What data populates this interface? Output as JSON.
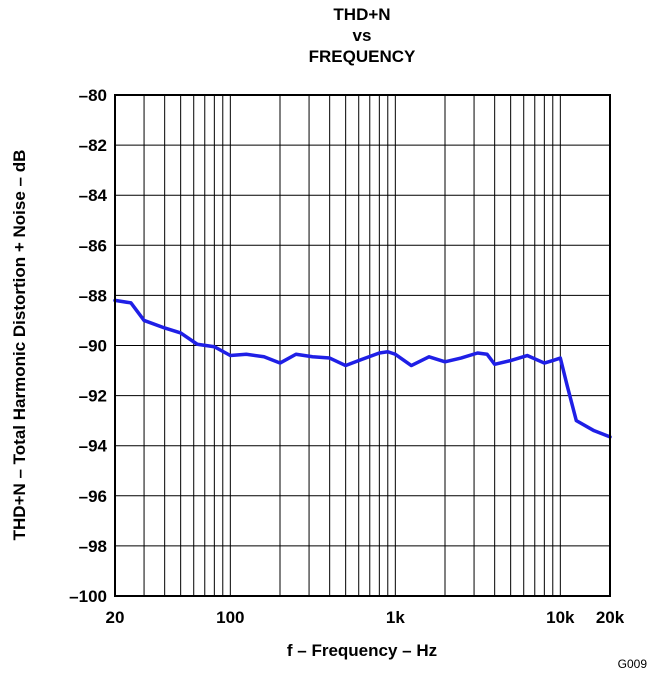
{
  "chart_data": {
    "type": "line",
    "title_lines": [
      "THD+N",
      "vs",
      "FREQUENCY"
    ],
    "xlabel": "f – Frequency – Hz",
    "ylabel": "THD+N – Total Harmonic Distortion + Noise – dB",
    "figure_code": "G009",
    "x_scale": "log",
    "xlim": [
      20,
      20000
    ],
    "ylim": [
      -100,
      -80
    ],
    "grid": true,
    "legend": "none",
    "x_ticks": [
      {
        "value": 20,
        "label": "20"
      },
      {
        "value": 100,
        "label": "100"
      },
      {
        "value": 1000,
        "label": "1k"
      },
      {
        "value": 10000,
        "label": "10k"
      },
      {
        "value": 20000,
        "label": "20k"
      }
    ],
    "y_ticks": [
      {
        "value": -80,
        "label": "–80"
      },
      {
        "value": -82,
        "label": "–82"
      },
      {
        "value": -84,
        "label": "–84"
      },
      {
        "value": -86,
        "label": "–86"
      },
      {
        "value": -88,
        "label": "–88"
      },
      {
        "value": -90,
        "label": "–90"
      },
      {
        "value": -92,
        "label": "–92"
      },
      {
        "value": -94,
        "label": "–94"
      },
      {
        "value": -96,
        "label": "–96"
      },
      {
        "value": -98,
        "label": "–98"
      },
      {
        "value": -100,
        "label": "–100"
      }
    ],
    "series": [
      {
        "color": "#1f1fe6",
        "x": [
          20,
          25,
          30,
          40,
          50,
          63,
          80,
          100,
          125,
          160,
          200,
          250,
          315,
          400,
          500,
          630,
          800,
          900,
          1000,
          1250,
          1600,
          2000,
          2500,
          3150,
          3600,
          4000,
          5000,
          6300,
          8000,
          9000,
          10000,
          11000,
          12500,
          16000,
          20000
        ],
        "y": [
          -88.2,
          -88.3,
          -89.0,
          -89.3,
          -89.5,
          -89.95,
          -90.05,
          -90.4,
          -90.35,
          -90.45,
          -90.7,
          -90.35,
          -90.45,
          -90.5,
          -90.8,
          -90.55,
          -90.3,
          -90.25,
          -90.35,
          -90.8,
          -90.45,
          -90.65,
          -90.5,
          -90.3,
          -90.35,
          -90.75,
          -90.6,
          -90.4,
          -90.7,
          -90.6,
          -90.5,
          -91.6,
          -93.0,
          -93.4,
          -93.65
        ]
      }
    ]
  }
}
